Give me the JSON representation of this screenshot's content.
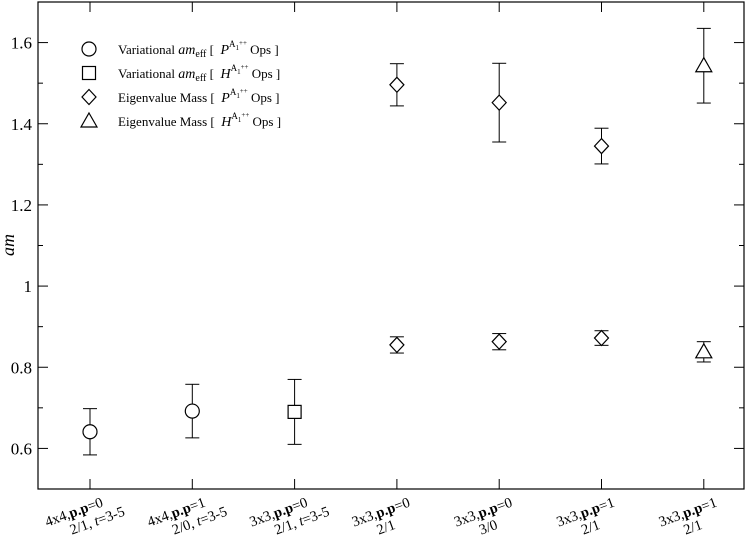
{
  "chart_data": {
    "type": "scatter",
    "ylabel": "am",
    "ylim": [
      0.5,
      1.7
    ],
    "yticks": [
      "0.6",
      "0.8",
      "1",
      "1.2",
      "1.4",
      "1.6"
    ],
    "grid": false,
    "legend_position": "top-left",
    "categories": [
      {
        "line1": "4x4,",
        "bold1": "p.p",
        "tail1": "=0",
        "line2a": "2/1, ",
        "line2i": "t",
        "line2b": "=3-5"
      },
      {
        "line1": "4x4,",
        "bold1": "p.p",
        "tail1": "=1",
        "line2a": "2/0, ",
        "line2i": "t",
        "line2b": "=3-5"
      },
      {
        "line1": "3x3,",
        "bold1": "p.p",
        "tail1": "=0",
        "line2a": "2/1, ",
        "line2i": "t",
        "line2b": "=3-5"
      },
      {
        "line1": "3x3,",
        "bold1": "p.p",
        "tail1": "=0",
        "line2a": "2/1",
        "line2i": "",
        "line2b": ""
      },
      {
        "line1": "3x3,",
        "bold1": "p.p",
        "tail1": "=0",
        "line2a": "3/0",
        "line2i": "",
        "line2b": ""
      },
      {
        "line1": "3x3,",
        "bold1": "p.p",
        "tail1": "=1",
        "line2a": "2/1",
        "line2i": "",
        "line2b": ""
      },
      {
        "line1": "3x3,",
        "bold1": "p.p",
        "tail1": "=1",
        "line2a": "2/1",
        "line2i": "",
        "line2b": ""
      }
    ],
    "series": [
      {
        "marker": "circle",
        "legend": {
          "a": "Variational ",
          "b": "am",
          "sub": "eff",
          "c": " [ ",
          "op": "P",
          "sup": "A",
          "supsub": "1",
          "supplus": "++",
          "d": " Ops ]"
        },
        "points": [
          {
            "cat": 0,
            "y": 0.641,
            "err": 0.057
          },
          {
            "cat": 1,
            "y": 0.692,
            "err": 0.066
          }
        ]
      },
      {
        "marker": "square",
        "legend": {
          "a": "Variational ",
          "b": "am",
          "sub": "eff",
          "c": " [ ",
          "op": "H",
          "sup": "A",
          "supsub": "1",
          "supplus": "++",
          "d": " Ops ]"
        },
        "points": [
          {
            "cat": 2,
            "y": 0.69,
            "err": 0.08
          }
        ]
      },
      {
        "marker": "diamond",
        "legend": {
          "a": "Eigenvalue Mass [ ",
          "b": "",
          "sub": "",
          "c": "",
          "op": "P",
          "sup": "A",
          "supsub": "1",
          "supplus": "++",
          "d": " Ops ]"
        },
        "points": [
          {
            "cat": 3,
            "y": 0.855,
            "err": 0.02
          },
          {
            "cat": 3,
            "y": 1.496,
            "err": 0.052
          },
          {
            "cat": 4,
            "y": 0.863,
            "err": 0.02
          },
          {
            "cat": 4,
            "y": 1.452,
            "err": 0.097
          },
          {
            "cat": 5,
            "y": 0.872,
            "err": 0.018
          },
          {
            "cat": 5,
            "y": 1.345,
            "err": 0.044
          }
        ]
      },
      {
        "marker": "triangle",
        "legend": {
          "a": "Eigenvalue Mass [ ",
          "b": "",
          "sub": "",
          "c": "",
          "op": "H",
          "sup": "A",
          "supsub": "1",
          "supplus": "++",
          "d": " Ops ]"
        },
        "points": [
          {
            "cat": 6,
            "y": 0.838,
            "err": 0.025
          },
          {
            "cat": 6,
            "y": 1.543,
            "err": 0.092
          }
        ]
      }
    ]
  }
}
